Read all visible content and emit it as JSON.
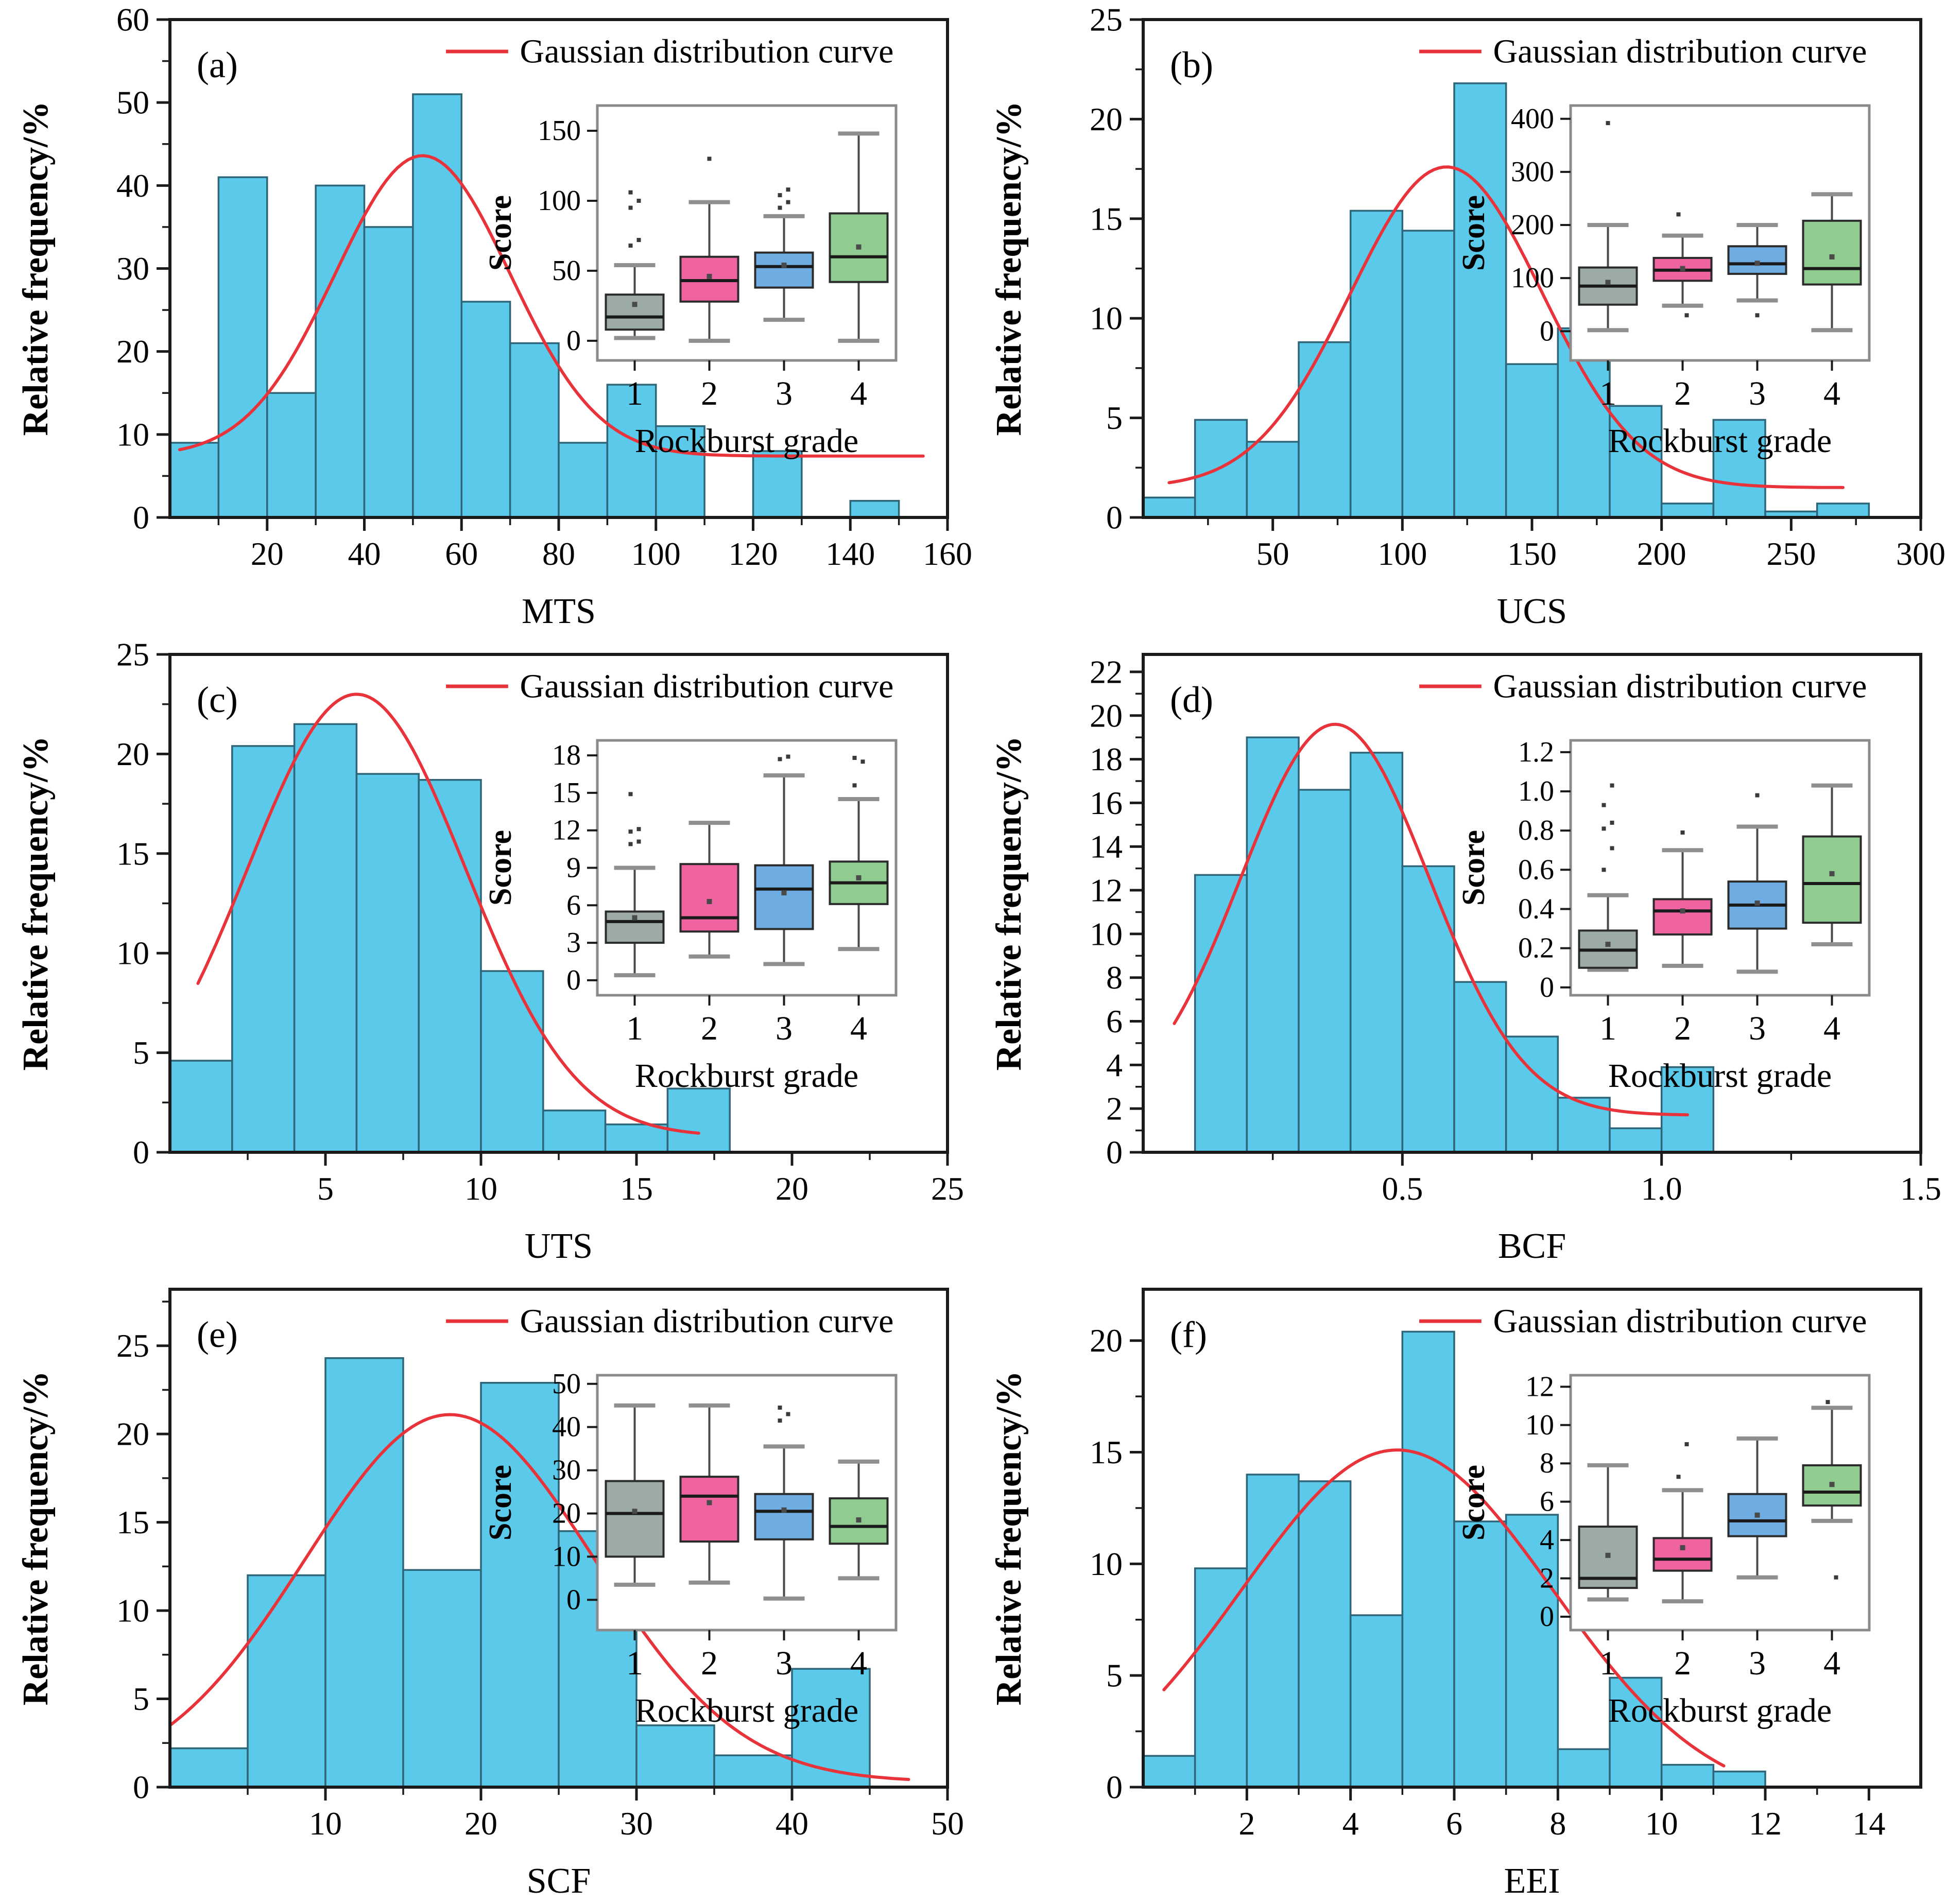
{
  "figure": {
    "ylabel": "Relative frequency/%",
    "legend_label": "Gaussian distribution curve",
    "inset_ylabel": "Score",
    "inset_xlabel": "Rockburst grade",
    "colors": {
      "bar_fill": "#5BC9E9",
      "bar_edge": "#2F6579",
      "curve": "#E8333A",
      "axis": "#1A1A1A",
      "inset_frame": "#8A8A8A",
      "box_stroke": "#2B2B2B",
      "median": "#1A1A1A",
      "whisker": "#4A4A4A",
      "cap": "#8F8F8F",
      "mean_marker": "#4A4A4A",
      "outlier": "#3A3A3A",
      "grade_fills": [
        "#9DABA6",
        "#EF63A1",
        "#6FACE1",
        "#90CB90"
      ]
    }
  },
  "chart_data": [
    {
      "panel": "a",
      "tag": "(a)",
      "type": "bar",
      "subtype": "histogram",
      "xlabel": "MTS",
      "ylabel": "Relative frequency/%",
      "xlim": [
        0,
        160
      ],
      "ylim": [
        0,
        60
      ],
      "xticks": [
        20,
        40,
        60,
        80,
        100,
        120,
        140,
        160
      ],
      "xtick_decimals": 0,
      "yticks": [
        0,
        10,
        20,
        30,
        40,
        50,
        60
      ],
      "bin_start": 0,
      "bin_width": 10,
      "values": [
        9,
        41,
        15,
        40,
        35,
        51,
        26,
        21,
        9,
        16,
        11,
        0,
        8,
        0,
        2
      ],
      "gaussian": {
        "name": "Gaussian distribution curve",
        "amp": 36.2,
        "mean": 52,
        "sigma": 18,
        "offset": 7.4,
        "x_range": [
          2,
          155
        ]
      },
      "inset": {
        "type": "box",
        "xlabel": "Rockburst grade",
        "ylabel": "Score",
        "ylim": [
          -14,
          168
        ],
        "yticks": [
          0,
          50,
          100,
          150
        ],
        "ytick_decimals": 0,
        "groups": [
          {
            "grade": "1",
            "low": 2,
            "q1": 8,
            "median": 17,
            "q3": 33,
            "high": 54,
            "mean": 26,
            "outliers": [
              68,
              72,
              95,
              100,
              106
            ]
          },
          {
            "grade": "2",
            "low": 0,
            "q1": 28,
            "median": 43,
            "q3": 60,
            "high": 99,
            "mean": 46,
            "outliers": [
              130
            ]
          },
          {
            "grade": "3",
            "low": 15,
            "q1": 38,
            "median": 53,
            "q3": 63,
            "high": 89,
            "mean": 54,
            "outliers": [
              95,
              99,
              104,
              108
            ]
          },
          {
            "grade": "4",
            "low": 0,
            "q1": 42,
            "median": 60,
            "q3": 91,
            "high": 148,
            "mean": 67,
            "outliers": []
          }
        ]
      }
    },
    {
      "panel": "b",
      "tag": "(b)",
      "type": "bar",
      "subtype": "histogram",
      "xlabel": "UCS",
      "ylabel": "Relative frequency/%",
      "xlim": [
        0,
        300
      ],
      "ylim": [
        0,
        25
      ],
      "xticks": [
        50,
        100,
        150,
        200,
        250,
        300
      ],
      "xtick_decimals": 0,
      "yticks": [
        0,
        5,
        10,
        15,
        20,
        25
      ],
      "bin_start": 0,
      "bin_width": 20,
      "values": [
        1,
        4.9,
        3.8,
        8.8,
        15.4,
        14.4,
        21.8,
        7.7,
        9.5,
        5.6,
        0.7,
        4.9,
        0.3,
        0.7
      ],
      "gaussian": {
        "name": "Gaussian distribution curve",
        "amp": 16.1,
        "mean": 117,
        "sigma": 37,
        "offset": 1.5,
        "x_range": [
          10,
          270
        ]
      },
      "inset": {
        "type": "box",
        "xlabel": "Rockburst grade",
        "ylabel": "Score",
        "ylim": [
          -55,
          425
        ],
        "yticks": [
          0,
          100,
          200,
          300,
          400
        ],
        "ytick_decimals": 0,
        "groups": [
          {
            "grade": "1",
            "low": 2,
            "q1": 50,
            "median": 85,
            "q3": 120,
            "high": 200,
            "mean": 92,
            "outliers": [
              392
            ]
          },
          {
            "grade": "2",
            "low": 48,
            "q1": 95,
            "median": 115,
            "q3": 138,
            "high": 180,
            "mean": 118,
            "outliers": [
              220,
              30
            ]
          },
          {
            "grade": "3",
            "low": 58,
            "q1": 108,
            "median": 127,
            "q3": 160,
            "high": 200,
            "mean": 128,
            "outliers": [
              30
            ]
          },
          {
            "grade": "4",
            "low": 2,
            "q1": 88,
            "median": 118,
            "q3": 208,
            "high": 258,
            "mean": 140,
            "outliers": []
          }
        ]
      }
    },
    {
      "panel": "c",
      "tag": "(c)",
      "type": "bar",
      "subtype": "histogram",
      "xlabel": "UTS",
      "ylabel": "Relative frequency/%",
      "xlim": [
        0,
        25
      ],
      "ylim": [
        0,
        25
      ],
      "xticks": [
        5,
        10,
        15,
        20,
        25
      ],
      "xtick_decimals": 0,
      "yticks": [
        0,
        5,
        10,
        15,
        20,
        25
      ],
      "bin_start": 0,
      "bin_width": 2,
      "values": [
        4.6,
        20.4,
        21.5,
        19,
        18.7,
        9.1,
        2.1,
        1.4,
        3.2
      ],
      "gaussian": {
        "name": "Gaussian distribution curve",
        "amp": 22.2,
        "mean": 6,
        "sigma": 3.5,
        "offset": 0.8,
        "x_range": [
          0.9,
          17
        ]
      },
      "inset": {
        "type": "box",
        "xlabel": "Rockburst grade",
        "ylabel": "Score",
        "ylim": [
          -1.2,
          19.2
        ],
        "yticks": [
          0,
          3,
          6,
          9,
          12,
          15,
          18
        ],
        "ytick_decimals": 0,
        "groups": [
          {
            "grade": "1",
            "low": 0.4,
            "q1": 3,
            "median": 4.7,
            "q3": 5.5,
            "high": 9,
            "mean": 5,
            "outliers": [
              10.9,
              11.1,
              11.9,
              12.1,
              14.9
            ]
          },
          {
            "grade": "2",
            "low": 1.9,
            "q1": 3.9,
            "median": 5,
            "q3": 9.3,
            "high": 12.6,
            "mean": 6.3,
            "outliers": []
          },
          {
            "grade": "3",
            "low": 1.3,
            "q1": 4.1,
            "median": 7.3,
            "q3": 9.2,
            "high": 16.4,
            "mean": 7,
            "outliers": [
              17.7,
              17.9
            ]
          },
          {
            "grade": "4",
            "low": 2.5,
            "q1": 6.1,
            "median": 7.8,
            "q3": 9.5,
            "high": 14.5,
            "mean": 8.2,
            "outliers": [
              15.6,
              17.5,
              17.8
            ]
          }
        ]
      }
    },
    {
      "panel": "d",
      "tag": "(d)",
      "type": "bar",
      "subtype": "histogram",
      "xlabel": "BCF",
      "ylabel": "Relative frequency/%",
      "xlim": [
        0,
        1.5
      ],
      "ylim": [
        0,
        22.8
      ],
      "xticks": [
        0.5,
        1.0,
        1.5
      ],
      "xtick_decimals": 1,
      "yticks": [
        0,
        2,
        4,
        6,
        8,
        10,
        12,
        14,
        16,
        18,
        20,
        22
      ],
      "bin_start": 0.1,
      "bin_width": 0.1,
      "values": [
        12.7,
        19,
        16.6,
        18.3,
        13.1,
        7.8,
        5.3,
        2.5,
        1.1,
        3.9
      ],
      "gaussian": {
        "name": "Gaussian distribution curve",
        "amp": 17.9,
        "mean": 0.37,
        "sigma": 0.182,
        "offset": 1.7,
        "x_range": [
          0.06,
          1.05
        ]
      },
      "inset": {
        "type": "box",
        "xlabel": "Rockburst grade",
        "ylabel": "Score",
        "ylim": [
          -0.04,
          1.26
        ],
        "yticks": [
          0,
          0.2,
          0.4,
          0.6,
          0.8,
          1.0,
          1.2
        ],
        "ytick_decimals": 1,
        "groups": [
          {
            "grade": "1",
            "low": 0.09,
            "q1": 0.1,
            "median": 0.19,
            "q3": 0.29,
            "high": 0.47,
            "mean": 0.22,
            "outliers": [
              0.6,
              0.71,
              0.81,
              0.84,
              0.93,
              1.03
            ]
          },
          {
            "grade": "2",
            "low": 0.11,
            "q1": 0.27,
            "median": 0.39,
            "q3": 0.45,
            "high": 0.7,
            "mean": 0.39,
            "outliers": [
              0.79
            ]
          },
          {
            "grade": "3",
            "low": 0.08,
            "q1": 0.3,
            "median": 0.42,
            "q3": 0.54,
            "high": 0.82,
            "mean": 0.43,
            "outliers": [
              0.98
            ]
          },
          {
            "grade": "4",
            "low": 0.22,
            "q1": 0.33,
            "median": 0.53,
            "q3": 0.77,
            "high": 1.03,
            "mean": 0.58,
            "outliers": []
          }
        ]
      }
    },
    {
      "panel": "e",
      "tag": "(e)",
      "type": "bar",
      "subtype": "histogram",
      "xlabel": "SCF",
      "ylabel": "Relative frequency/%",
      "xlim": [
        0,
        50
      ],
      "ylim": [
        0,
        28.2
      ],
      "xticks": [
        10,
        20,
        30,
        40,
        50
      ],
      "xtick_decimals": 0,
      "yticks": [
        0,
        5,
        10,
        15,
        20,
        25
      ],
      "bin_start": 0,
      "bin_width": 5,
      "values": [
        2.2,
        12,
        24.3,
        12.3,
        22.9,
        14.5,
        3.5,
        1.8,
        6.7
      ],
      "gaussian": {
        "name": "Gaussian distribution curve",
        "amp": 20.8,
        "mean": 18,
        "sigma": 9.3,
        "offset": 0.3,
        "x_range": [
          0,
          47.5
        ]
      },
      "inset": {
        "type": "box",
        "xlabel": "Rockburst grade",
        "ylabel": "Score",
        "ylim": [
          -7,
          52
        ],
        "yticks": [
          0,
          10,
          20,
          30,
          40,
          50
        ],
        "ytick_decimals": 0,
        "groups": [
          {
            "grade": "1",
            "low": 3.5,
            "q1": 10,
            "median": 20,
            "q3": 27.5,
            "high": 45,
            "mean": 20.5,
            "outliers": []
          },
          {
            "grade": "2",
            "low": 4,
            "q1": 13.5,
            "median": 24,
            "q3": 28.5,
            "high": 45,
            "mean": 22.5,
            "outliers": []
          },
          {
            "grade": "3",
            "low": 0.3,
            "q1": 14,
            "median": 20.5,
            "q3": 24.5,
            "high": 35.5,
            "mean": 20.8,
            "outliers": [
              41.5,
              43,
              44.5
            ]
          },
          {
            "grade": "4",
            "low": 5,
            "q1": 13,
            "median": 17,
            "q3": 23.5,
            "high": 32,
            "mean": 18.5,
            "outliers": []
          }
        ]
      }
    },
    {
      "panel": "f",
      "tag": "(f)",
      "type": "bar",
      "subtype": "histogram",
      "xlabel": "EEI",
      "ylabel": "Relative frequency/%",
      "xlim": [
        0,
        15
      ],
      "ylim": [
        0,
        22.3
      ],
      "xticks": [
        2,
        4,
        6,
        8,
        10,
        12,
        14
      ],
      "xtick_decimals": 0,
      "yticks": [
        0,
        5,
        10,
        15,
        20
      ],
      "bin_start": 0,
      "bin_width": 1,
      "values": [
        1.4,
        9.8,
        14,
        13.7,
        7.7,
        20.4,
        11.9,
        12.2,
        1.7,
        4.9,
        1,
        0.7
      ],
      "gaussian": {
        "name": "Gaussian distribution curve",
        "amp": 15.9,
        "mean": 4.9,
        "sigma": 3.0,
        "offset": -0.8,
        "x_range": [
          0.4,
          11.2
        ]
      },
      "inset": {
        "type": "box",
        "xlabel": "Rockburst grade",
        "ylabel": "Score",
        "ylim": [
          -0.7,
          12.6
        ],
        "yticks": [
          0,
          2,
          4,
          6,
          8,
          10,
          12
        ],
        "ytick_decimals": 0,
        "groups": [
          {
            "grade": "1",
            "low": 0.9,
            "q1": 1.5,
            "median": 2,
            "q3": 4.7,
            "high": 7.9,
            "mean": 3.2,
            "outliers": []
          },
          {
            "grade": "2",
            "low": 0.8,
            "q1": 2.4,
            "median": 3,
            "q3": 4.1,
            "high": 6.6,
            "mean": 3.6,
            "outliers": [
              7.3,
              9
            ]
          },
          {
            "grade": "3",
            "low": 2.05,
            "q1": 4.2,
            "median": 5,
            "q3": 6.4,
            "high": 9.3,
            "mean": 5.3,
            "outliers": []
          },
          {
            "grade": "4",
            "low": 5,
            "q1": 5.8,
            "median": 6.5,
            "q3": 7.9,
            "high": 10.9,
            "mean": 6.9,
            "outliers": [
              11.2,
              2.05
            ]
          }
        ]
      }
    }
  ]
}
